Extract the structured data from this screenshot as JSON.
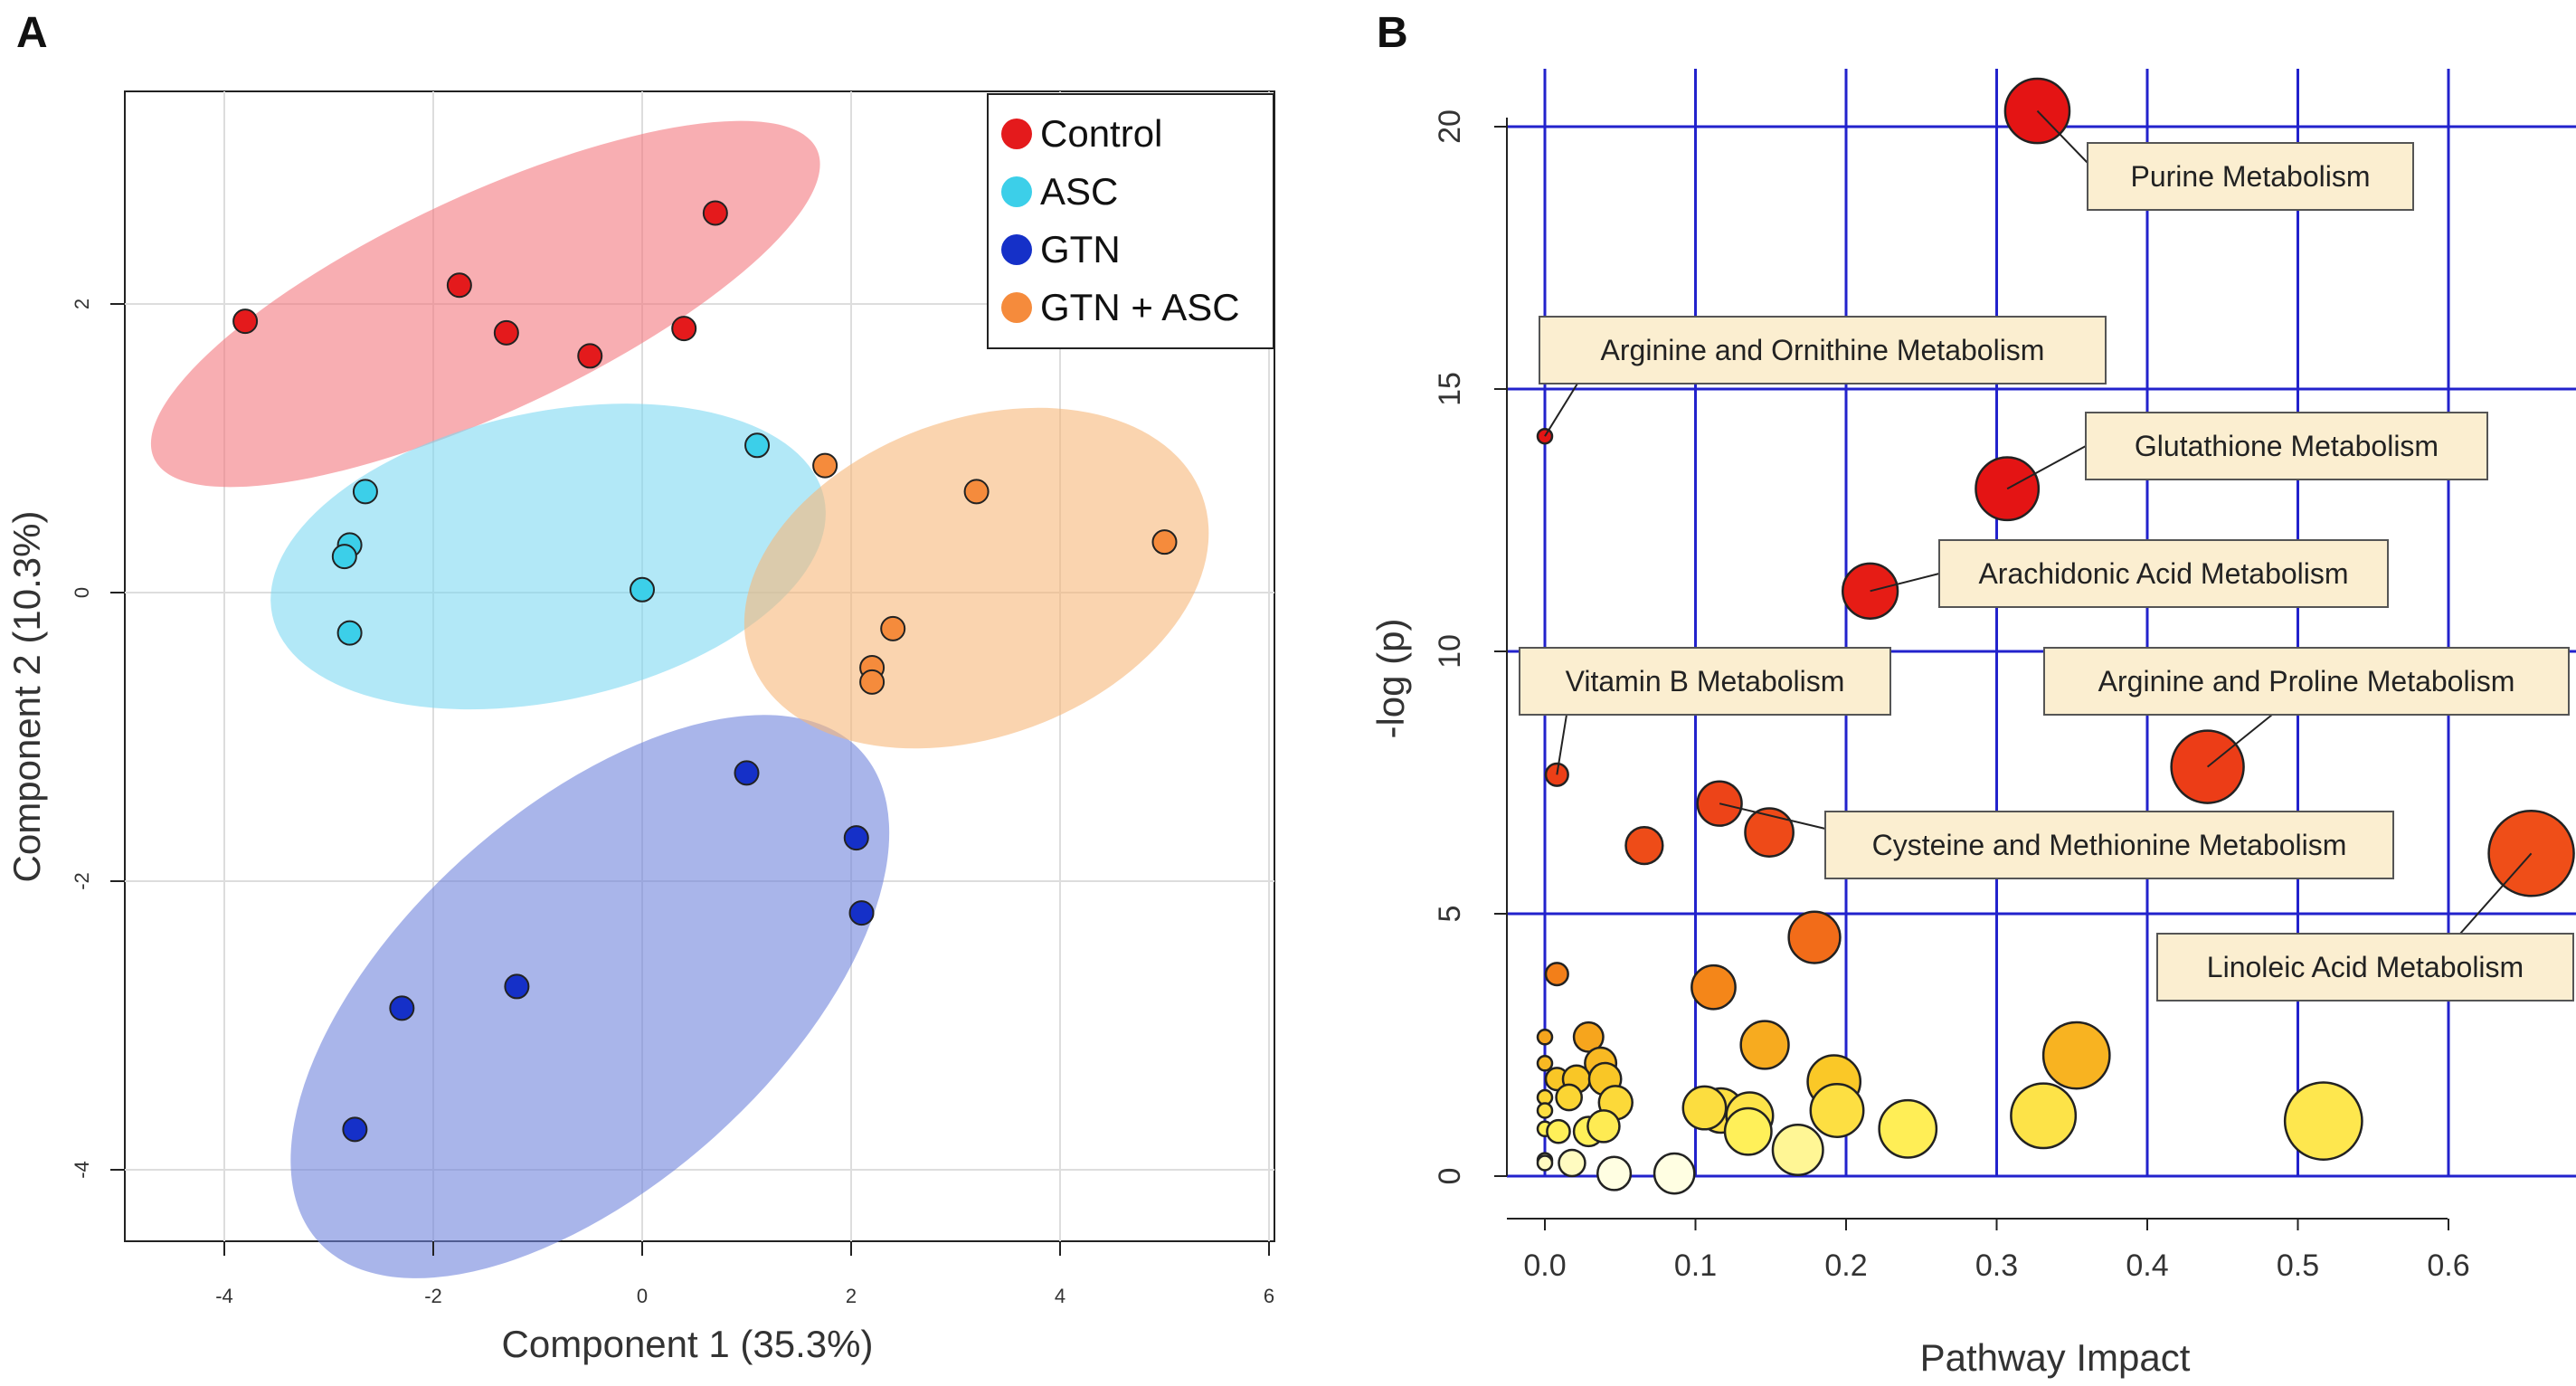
{
  "chart_data": [
    {
      "panel": "A",
      "type": "scatter",
      "title": "",
      "xlabel": "Component 1 (35.3%)",
      "ylabel": "Component 2 (10.3%)",
      "xlim": [
        -5,
        6.1
      ],
      "ylim": [
        -4.5,
        3.5
      ],
      "xticks": [
        -4,
        -2,
        0,
        2,
        4,
        6
      ],
      "yticks": [
        -4,
        -2,
        0,
        2
      ],
      "grid": true,
      "legend_position": "top-right",
      "series": [
        {
          "name": "Control",
          "color": "#e41a1c",
          "ellipse_color": "#f4787e",
          "points": [
            {
              "x": -3.8,
              "y": 1.88
            },
            {
              "x": -1.75,
              "y": 2.13
            },
            {
              "x": -1.3,
              "y": 1.8
            },
            {
              "x": -0.5,
              "y": 1.64
            },
            {
              "x": 0.4,
              "y": 1.83
            },
            {
              "x": 0.7,
              "y": 2.63
            }
          ],
          "ellipse": {
            "cx": -1.5,
            "cy": 2.0,
            "rx": 3.5,
            "ry": 0.75,
            "angle_deg": -25
          }
        },
        {
          "name": "ASC",
          "color": "#3ccfe9",
          "ellipse_color": "#7fd8f2",
          "points": [
            {
              "x": -2.65,
              "y": 0.7
            },
            {
              "x": -2.8,
              "y": 0.33
            },
            {
              "x": -2.85,
              "y": 0.25
            },
            {
              "x": -2.8,
              "y": -0.28
            },
            {
              "x": 0.0,
              "y": 0.02
            },
            {
              "x": 1.1,
              "y": 1.02
            }
          ],
          "ellipse": {
            "cx": -0.9,
            "cy": 0.25,
            "rx": 2.7,
            "ry": 1.0,
            "angle_deg": -12
          }
        },
        {
          "name": "GTN",
          "color": "#1530c8",
          "ellipse_color": "#7084dc",
          "points": [
            {
              "x": -2.75,
              "y": -3.72
            },
            {
              "x": -2.3,
              "y": -2.88
            },
            {
              "x": -1.2,
              "y": -2.73
            },
            {
              "x": 1.0,
              "y": -1.25
            },
            {
              "x": 2.05,
              "y": -1.7
            },
            {
              "x": 2.1,
              "y": -2.22
            }
          ],
          "ellipse": {
            "cx": -0.5,
            "cy": -2.8,
            "rx": 3.5,
            "ry": 1.3,
            "angle_deg": -42
          }
        },
        {
          "name": "GTN + ASC",
          "color": "#f58b3c",
          "ellipse_color": "#f6b87a",
          "points": [
            {
              "x": 1.75,
              "y": 0.88
            },
            {
              "x": 3.2,
              "y": 0.7
            },
            {
              "x": 5.0,
              "y": 0.35
            },
            {
              "x": 2.4,
              "y": -0.25
            },
            {
              "x": 2.2,
              "y": -0.52
            },
            {
              "x": 2.2,
              "y": -0.62
            }
          ],
          "ellipse": {
            "cx": 3.2,
            "cy": 0.1,
            "rx": 2.3,
            "ry": 1.1,
            "angle_deg": -20
          }
        }
      ]
    },
    {
      "panel": "B",
      "type": "scatter",
      "title": "",
      "xlabel": "Pathway Impact",
      "ylabel": "-log (p)",
      "xlim": [
        -0.04,
        0.68
      ],
      "ylim": [
        -1.0,
        21.3
      ],
      "xticks": [
        "0.0",
        "0.1",
        "0.2",
        "0.3",
        "0.4",
        "0.5",
        "0.6"
      ],
      "yticks": [
        "0",
        "5",
        "10",
        "15",
        "20"
      ],
      "grid": true,
      "points": [
        {
          "x": 0.327,
          "y": 20.3,
          "label": "Purine Metabolism"
        },
        {
          "x": 0.0,
          "y": 14.1,
          "label": "Arginine and Ornithine Metabolism"
        },
        {
          "x": 0.307,
          "y": 13.1,
          "label": "Glutathione Metabolism"
        },
        {
          "x": 0.216,
          "y": 11.15,
          "label": "Arachidonic Acid Metabolism"
        },
        {
          "x": 0.008,
          "y": 7.65,
          "label": "Vitamin B Metabolism"
        },
        {
          "x": 0.44,
          "y": 7.8,
          "label": "Arginine and Proline Metabolism"
        },
        {
          "x": 0.116,
          "y": 7.1,
          "label": "Cysteine and Methionine  Metabolism"
        },
        {
          "x": 0.655,
          "y": 6.15,
          "label": "Linoleic Acid Metabolism"
        },
        {
          "x": 0.149,
          "y": 6.55
        },
        {
          "x": 0.066,
          "y": 6.3
        },
        {
          "x": 0.179,
          "y": 4.55
        },
        {
          "x": 0.008,
          "y": 3.85
        },
        {
          "x": 0.112,
          "y": 3.6
        },
        {
          "x": 0.146,
          "y": 2.5
        },
        {
          "x": 0.353,
          "y": 2.3
        },
        {
          "x": 0.0,
          "y": 2.65
        },
        {
          "x": 0.029,
          "y": 2.65
        },
        {
          "x": 0.0,
          "y": 2.15
        },
        {
          "x": 0.037,
          "y": 2.15
        },
        {
          "x": 0.008,
          "y": 1.85
        },
        {
          "x": 0.021,
          "y": 1.85
        },
        {
          "x": 0.04,
          "y": 1.85
        },
        {
          "x": 0.0,
          "y": 1.5
        },
        {
          "x": 0.016,
          "y": 1.5
        },
        {
          "x": 0.047,
          "y": 1.4
        },
        {
          "x": 0.192,
          "y": 1.8
        },
        {
          "x": 0.0,
          "y": 1.25
        },
        {
          "x": 0.117,
          "y": 1.25
        },
        {
          "x": 0.106,
          "y": 1.3
        },
        {
          "x": 0.136,
          "y": 1.15
        },
        {
          "x": 0.194,
          "y": 1.25
        },
        {
          "x": 0.331,
          "y": 1.15
        },
        {
          "x": 0.517,
          "y": 1.05
        },
        {
          "x": 0.0,
          "y": 0.9
        },
        {
          "x": 0.009,
          "y": 0.85
        },
        {
          "x": 0.029,
          "y": 0.85
        },
        {
          "x": 0.039,
          "y": 0.95
        },
        {
          "x": 0.135,
          "y": 0.85
        },
        {
          "x": 0.241,
          "y": 0.9
        },
        {
          "x": 0.168,
          "y": 0.5
        },
        {
          "x": 0.0,
          "y": 0.3
        },
        {
          "x": 0.0,
          "y": 0.25
        },
        {
          "x": 0.018,
          "y": 0.25
        },
        {
          "x": 0.046,
          "y": 0.05
        },
        {
          "x": 0.086,
          "y": 0.05
        }
      ]
    }
  ],
  "panels": {
    "a_label": "A",
    "b_label": "B"
  }
}
